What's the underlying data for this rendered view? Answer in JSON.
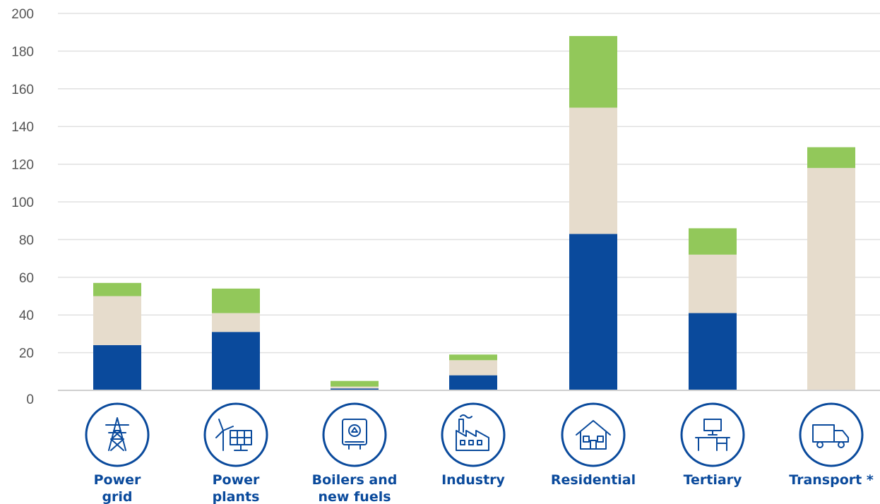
{
  "chart_data": {
    "type": "bar",
    "stacked": true,
    "categories": [
      "Power grid",
      "Power plants",
      "Boilers and new fuels",
      "Industry",
      "Residential",
      "Tertiary",
      "Transport *"
    ],
    "category_lines": [
      [
        "Power",
        "grid"
      ],
      [
        "Power",
        "plants"
      ],
      [
        "Boilers and",
        "new fuels"
      ],
      [
        "Industry"
      ],
      [
        "Residential"
      ],
      [
        "Tertiary"
      ],
      [
        "Transport *"
      ]
    ],
    "icons": [
      "pylon-icon",
      "wind-solar-icon",
      "boiler-icon",
      "factory-icon",
      "house-icon",
      "office-desk-icon",
      "truck-icon"
    ],
    "series": [
      {
        "color": "#0a4a9c",
        "values": [
          24,
          31,
          1,
          8,
          83,
          41,
          0
        ]
      },
      {
        "color": "#e6dccc",
        "values": [
          26,
          10,
          1,
          8,
          67,
          31,
          118
        ]
      },
      {
        "color": "#92c85a",
        "values": [
          7,
          13,
          3,
          3,
          38,
          14,
          11
        ]
      }
    ],
    "ylim": [
      0,
      200
    ],
    "yticks": [
      "0",
      "20",
      "40",
      "60",
      "80",
      "100",
      "120",
      "140",
      "160",
      "180",
      "200"
    ],
    "grid": true,
    "title": "",
    "xlabel": "",
    "ylabel": ""
  }
}
